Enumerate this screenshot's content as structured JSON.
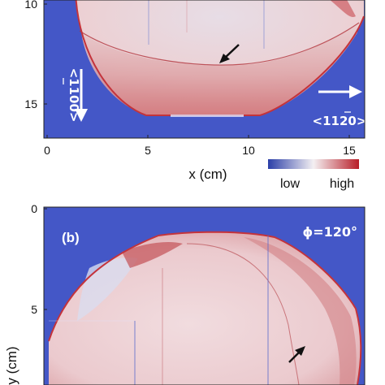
{
  "panel_a": {
    "y_ticks": [
      "10",
      "15"
    ],
    "x_ticks": [
      "0",
      "5",
      "10",
      "15"
    ],
    "x_label": "x (cm)",
    "direction_vertical": "<1̅0 0>",
    "direction_vertical_text": "<1100>",
    "direction_horizontal_text": "<1120>",
    "arrow_icon": "black-arrow-icon"
  },
  "colorbar": {
    "low_label": "low",
    "high_label": "high",
    "colors": [
      "#2b3fa8",
      "#f4f0f2",
      "#b81e28"
    ]
  },
  "panel_b": {
    "letter": "(b)",
    "phi": "ϕ=120°",
    "y_ticks": [
      "0",
      "5"
    ],
    "y_label": "y (cm)",
    "arrow_icon": "black-arrow-icon"
  },
  "colors": {
    "background_blue": "#4457c7",
    "disk_light": "#efd6d8",
    "rim_red": "#c4333b"
  }
}
